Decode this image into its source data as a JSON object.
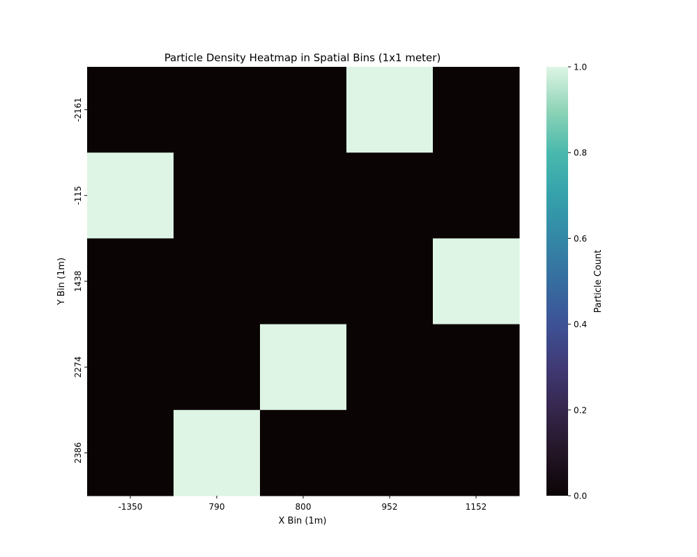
{
  "chart_data": {
    "type": "heatmap",
    "title": "Particle Density Heatmap in Spatial Bins (1x1 meter)",
    "xlabel": "X Bin (1m)",
    "ylabel": "Y Bin (1m)",
    "x_categories": [
      "-1350",
      "790",
      "800",
      "952",
      "1152"
    ],
    "y_categories": [
      "-2161",
      "-115",
      "1438",
      "2274",
      "2386"
    ],
    "values": [
      [
        0,
        0,
        0,
        1,
        0
      ],
      [
        1,
        0,
        0,
        0,
        0
      ],
      [
        0,
        0,
        0,
        0,
        1
      ],
      [
        0,
        0,
        1,
        0,
        0
      ],
      [
        0,
        1,
        0,
        0,
        0
      ]
    ],
    "colorbar": {
      "label": "Particle Count",
      "range": [
        0.0,
        1.0
      ],
      "ticks": [
        "0.0",
        "0.2",
        "0.4",
        "0.6",
        "0.8",
        "1.0"
      ],
      "colormap": "mako",
      "low_color": "#0b0405",
      "high_color": "#def5e5"
    },
    "grid": false,
    "legend": "colorbar-right"
  }
}
